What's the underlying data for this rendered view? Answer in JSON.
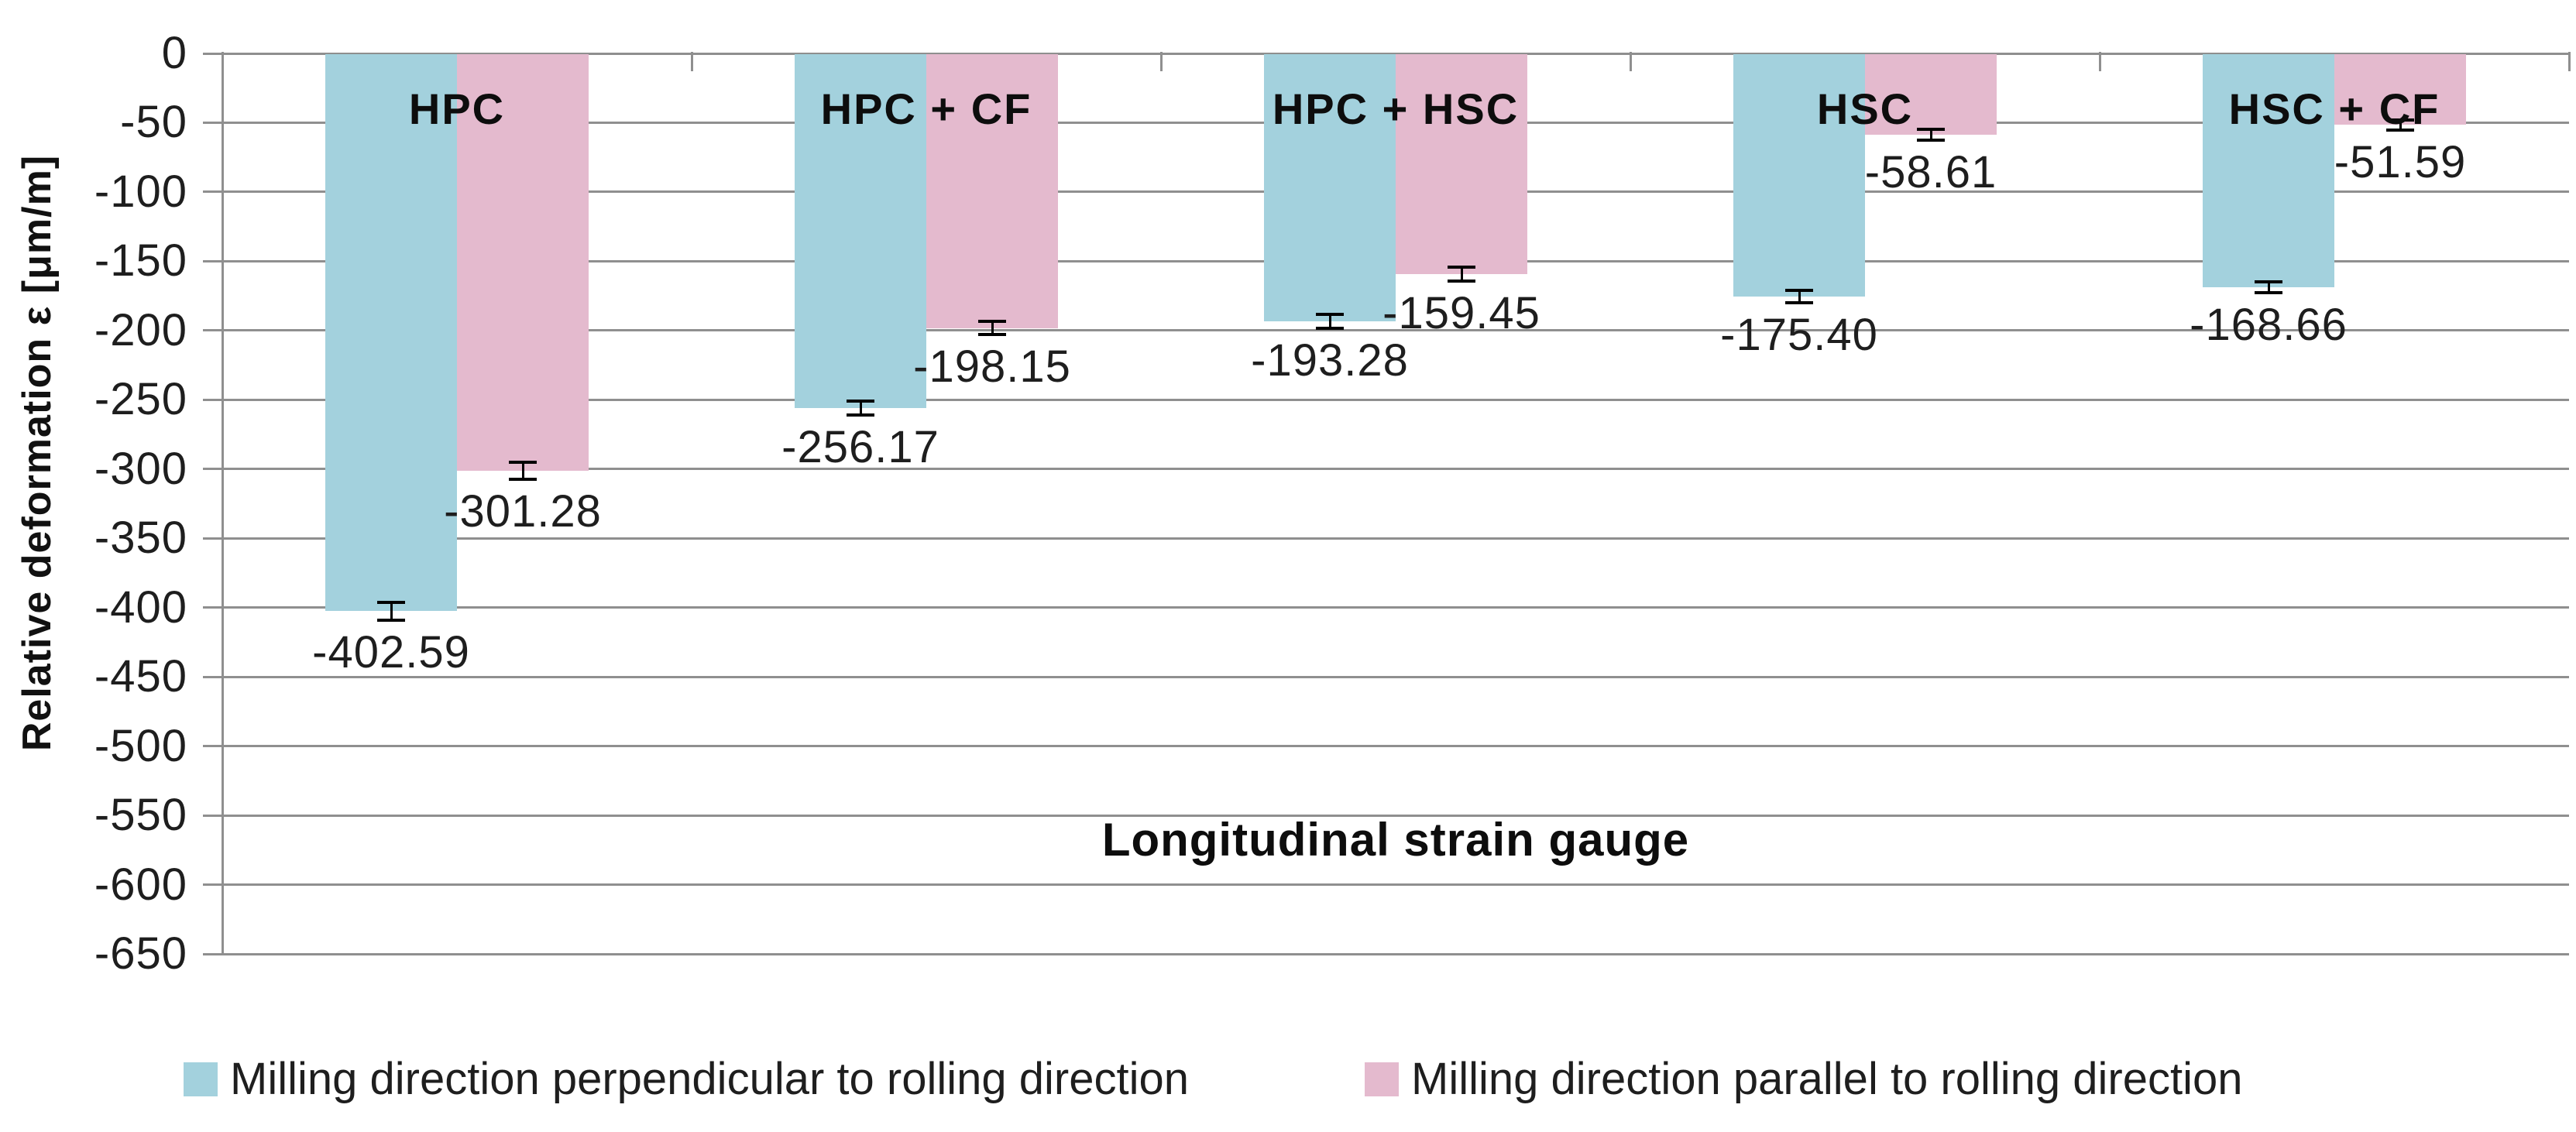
{
  "colors": {
    "series_perpendicular": "#a3d1dd",
    "series_parallel": "#e4bace",
    "gridline": "#8f8f8f",
    "text": "#1e1e1e",
    "error_bar": "#000000"
  },
  "chart_data": {
    "type": "bar",
    "orientation": "vertical",
    "title": "",
    "ylabel": "Relative deformation ε [μm/m]",
    "inner_label": "Longitudinal strain gauge",
    "ylim": [
      0,
      -650
    ],
    "ytick_step": 50,
    "ytick_labels": [
      "0",
      "-50",
      "-100",
      "-150",
      "-200",
      "-250",
      "-300",
      "-350",
      "-400",
      "-450",
      "-500",
      "-550",
      "-600",
      "-650"
    ],
    "grid": true,
    "legend_position": "bottom",
    "categories": [
      "HPC",
      "HPC + CF",
      "HPC + HSC",
      "HSC",
      "HSC + CF"
    ],
    "series": [
      {
        "name": "Milling direction perpendicular to rolling direction",
        "color": "#a3d1dd",
        "values": [
          -402.59,
          -256.17,
          -193.28,
          -175.4,
          -168.66
        ],
        "value_labels": [
          "-402.59",
          "-256.17",
          "-193.28",
          "-175.40",
          "-168.66"
        ],
        "error_values": [
          6.5,
          5,
          5,
          4.5,
          4
        ]
      },
      {
        "name": "Milling direction parallel to rolling direction",
        "color": "#e4bace",
        "values": [
          -301.28,
          -198.15,
          -159.45,
          -58.61,
          -51.59
        ],
        "value_labels": [
          "-301.28",
          "-198.15",
          "-159.45",
          "-58.61",
          "-51.59"
        ],
        "error_values": [
          6,
          5,
          5,
          4,
          3.5
        ]
      }
    ]
  }
}
